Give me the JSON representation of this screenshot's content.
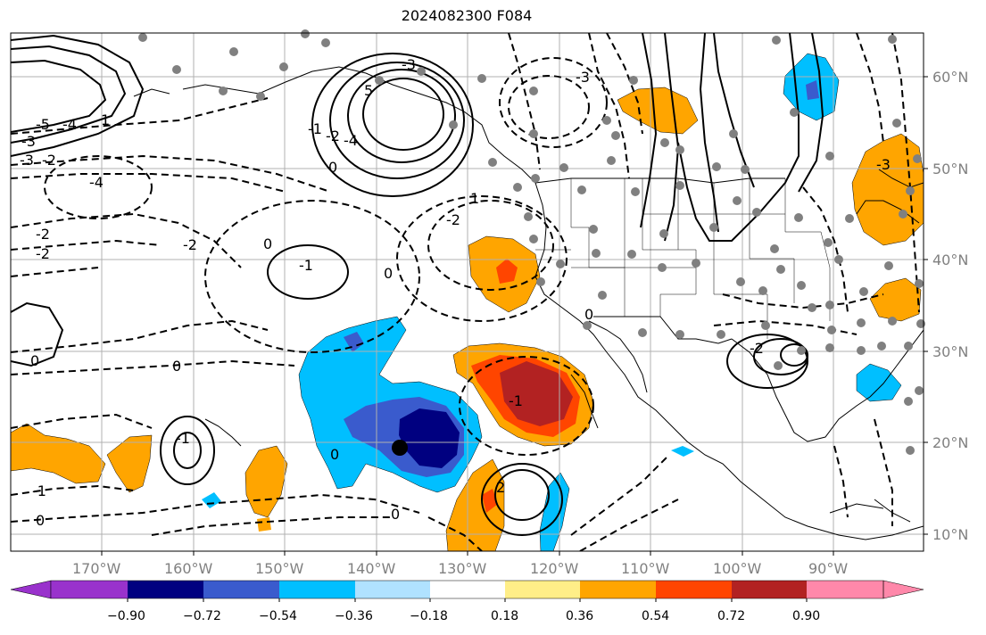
{
  "title": "2024082300 F084",
  "map": {
    "lon_labels": [
      "170°W",
      "160°W",
      "150°W",
      "140°W",
      "130°W",
      "120°W",
      "110°W",
      "100°W",
      "90°W"
    ],
    "lat_labels": [
      "60°N",
      "50°N",
      "40°N",
      "30°N",
      "20°N",
      "10°N"
    ],
    "contour_labels": [
      "-3",
      "5",
      "-3",
      "-2",
      "-4",
      "-3",
      "-2",
      "-2",
      "0",
      "0",
      "-1",
      "-1",
      "-2",
      "0",
      "0",
      "0",
      "0",
      "-1",
      "-1",
      "1",
      "0",
      "-3",
      "-4",
      "-5",
      "1",
      "2",
      "-2",
      "0",
      "-2",
      "-1",
      "0",
      "-2",
      "-3",
      "-4"
    ]
  },
  "colorbar": {
    "tick_labels": [
      "−0.90",
      "−0.72",
      "−0.54",
      "−0.36",
      "−0.18",
      "0.18",
      "0.36",
      "0.54",
      "0.72",
      "0.90"
    ],
    "colors": [
      "#9932cc",
      "#000080",
      "#3a5bcd",
      "#00bfff",
      "#b0e2ff",
      "#ffffff",
      "#ffee88",
      "#ffa500",
      "#ff4500",
      "#b22222",
      "#ff88aa"
    ]
  },
  "colors": {
    "neg_strong": "#000080",
    "neg_mid": "#3a5bcd",
    "neg_light": "#00bfff",
    "pos_light": "#ffa500",
    "pos_mid": "#ff4500",
    "pos_strong": "#b22222"
  }
}
